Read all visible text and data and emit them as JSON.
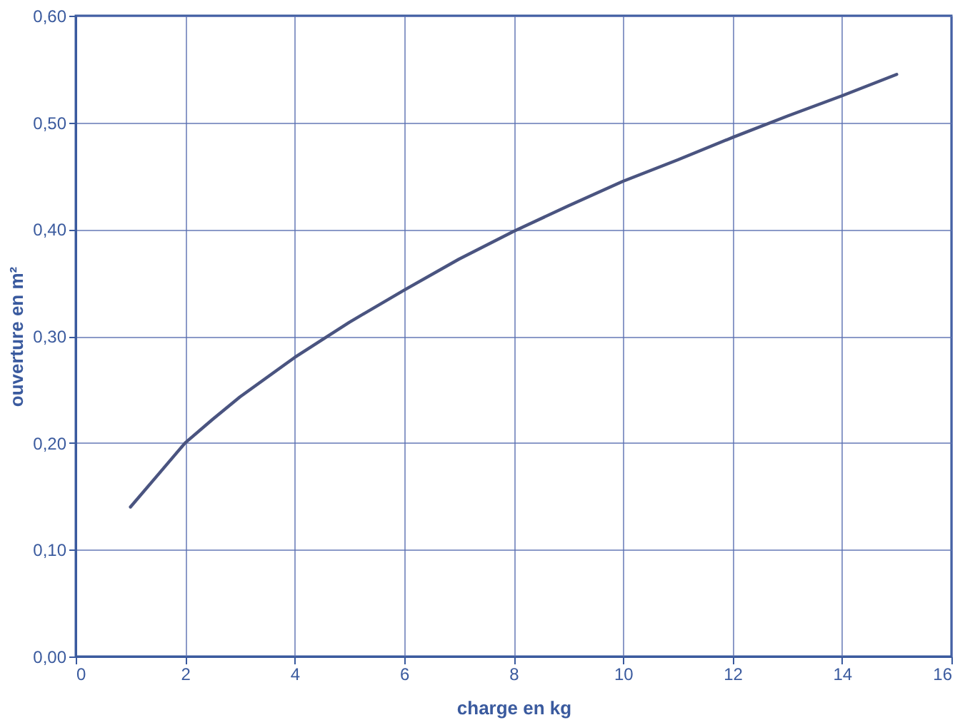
{
  "chart_data": {
    "type": "line",
    "xlabel": "charge en kg",
    "ylabel": "ouverture en m²",
    "x": [
      1,
      1.5,
      2,
      2.5,
      3,
      4,
      5,
      6,
      7,
      8,
      9,
      10,
      11,
      12,
      13,
      14,
      15
    ],
    "series": [
      {
        "color": "#4a5480",
        "values": [
          0.14,
          0.17,
          0.2,
          0.222,
          0.243,
          0.28,
          0.313,
          0.343,
          0.372,
          0.398,
          0.422,
          0.445,
          0.465,
          0.486,
          0.506,
          0.525,
          0.545
        ]
      }
    ],
    "xlim": [
      0,
      16
    ],
    "xticks": [
      0,
      2,
      4,
      6,
      8,
      10,
      12,
      14,
      16
    ],
    "ylim": [
      0,
      0.6
    ],
    "yticks": [
      {
        "value": 0,
        "label": "0,00"
      },
      {
        "value": 0.1,
        "label": "0,10"
      },
      {
        "value": 0.2,
        "label": "0,20"
      },
      {
        "value": 0.3,
        "label": "0,30"
      },
      {
        "value": 0.4,
        "label": "0,40"
      },
      {
        "value": 0.5,
        "label": "0,50"
      },
      {
        "value": 0.6,
        "label": "0,60"
      }
    ],
    "grid": true,
    "marker": "none",
    "line_style": "solid"
  }
}
